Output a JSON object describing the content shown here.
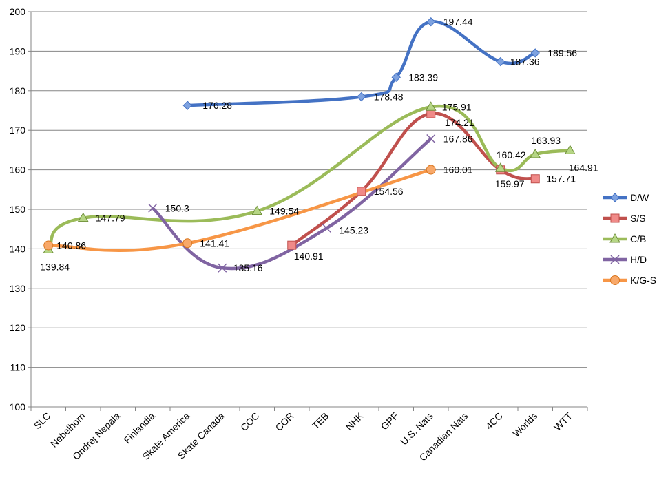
{
  "chart_data": {
    "type": "line",
    "title": "",
    "xlabel": "",
    "ylabel": "",
    "ylim": [
      100,
      200
    ],
    "yticks": [
      100,
      110,
      120,
      130,
      140,
      150,
      160,
      170,
      180,
      190,
      200
    ],
    "grid": "horizontal",
    "legend_position": "right",
    "smooth": true,
    "categories": [
      "SLC",
      "Nebelhorn",
      "Ondrej Nepala",
      "Finlandia",
      "Skate America",
      "Skate Canada",
      "COC",
      "COR",
      "TEB",
      "NHK",
      "GPF",
      "U.S. Nats",
      "Canadian Nats",
      "4CC",
      "Worlds",
      "WTT"
    ],
    "series": [
      {
        "name": "D/W",
        "color": "#4472C4",
        "marker": "diamond",
        "values": [
          null,
          null,
          null,
          null,
          176.28,
          null,
          null,
          null,
          null,
          178.48,
          183.39,
          197.44,
          null,
          187.36,
          189.56,
          null
        ],
        "labels": [
          "",
          "",
          "",
          "",
          "176.28",
          "",
          "",
          "",
          "",
          "178.48",
          "183.39",
          "197.44",
          "",
          "187.36",
          "189.56",
          ""
        ]
      },
      {
        "name": "S/S",
        "color": "#C0504D",
        "marker": "square",
        "values": [
          null,
          null,
          null,
          null,
          null,
          null,
          null,
          140.91,
          null,
          154.56,
          null,
          174.21,
          null,
          159.97,
          157.71,
          null
        ],
        "labels": [
          "",
          "",
          "",
          "",
          "",
          "",
          "",
          "140.91",
          "",
          "154.56",
          "",
          "174.21",
          "",
          "159.97",
          "157.71",
          ""
        ]
      },
      {
        "name": "C/B",
        "color": "#9BBB59",
        "marker": "triangle",
        "values": [
          139.84,
          147.79,
          null,
          null,
          null,
          null,
          149.54,
          null,
          null,
          null,
          null,
          175.91,
          null,
          160.42,
          163.93,
          164.91
        ],
        "labels": [
          "139.84",
          "147.79",
          "",
          "",
          "",
          "",
          "149.54",
          "",
          "",
          "",
          "",
          "175.91",
          "",
          "160.42",
          "163.93",
          "164.91"
        ]
      },
      {
        "name": "H/D",
        "color": "#8064A2",
        "marker": "x",
        "values": [
          null,
          null,
          null,
          150.3,
          null,
          135.16,
          null,
          null,
          145.23,
          null,
          null,
          167.86,
          null,
          null,
          null,
          null
        ],
        "labels": [
          "",
          "",
          "",
          "150.3",
          "",
          "135.16",
          "",
          "",
          "145.23",
          "",
          "",
          "167.86",
          "",
          "",
          "",
          ""
        ]
      },
      {
        "name": "K/G-S",
        "color": "#F79646",
        "marker": "circle",
        "values": [
          140.86,
          null,
          null,
          null,
          141.41,
          null,
          null,
          null,
          null,
          null,
          null,
          160.01,
          null,
          null,
          null,
          null
        ],
        "labels": [
          "140.86",
          "",
          "",
          "",
          "141.41",
          "",
          "",
          "",
          "",
          "",
          "",
          "160.01",
          "",
          "",
          "",
          ""
        ]
      }
    ]
  }
}
